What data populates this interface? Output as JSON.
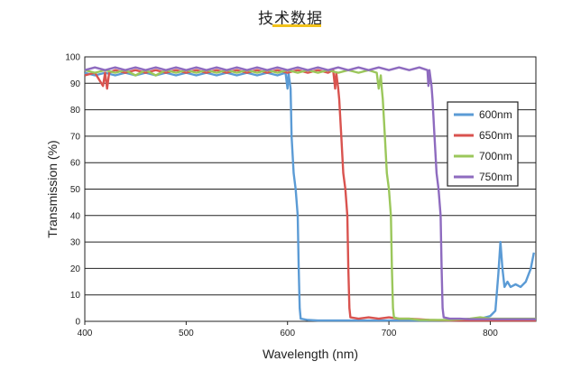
{
  "header": {
    "title": "技术数据"
  },
  "chart_data": {
    "type": "line",
    "title": "",
    "xlabel": "Wavelength (nm)",
    "ylabel": "Transmission (%)",
    "xlim": [
      400,
      845
    ],
    "ylim": [
      0,
      100
    ],
    "x_ticks": [
      400,
      500,
      600,
      700,
      800
    ],
    "y_ticks": [
      0,
      10,
      20,
      30,
      40,
      50,
      60,
      70,
      80,
      90,
      100
    ],
    "grid": "horizontal",
    "legend_position": "right",
    "colors": {
      "600nm": "#5b9bd5",
      "650nm": "#d9534f",
      "700nm": "#9bc75b",
      "750nm": "#8e6bbf"
    },
    "series": [
      {
        "name": "600nm",
        "color": "#5b9bd5",
        "points": [
          [
            400,
            94
          ],
          [
            410,
            93
          ],
          [
            420,
            94
          ],
          [
            430,
            93
          ],
          [
            440,
            94
          ],
          [
            450,
            93
          ],
          [
            460,
            94
          ],
          [
            470,
            93
          ],
          [
            480,
            94
          ],
          [
            490,
            93
          ],
          [
            500,
            94
          ],
          [
            510,
            93
          ],
          [
            520,
            94
          ],
          [
            530,
            93
          ],
          [
            540,
            94
          ],
          [
            550,
            93
          ],
          [
            560,
            94
          ],
          [
            570,
            93
          ],
          [
            580,
            94
          ],
          [
            590,
            93
          ],
          [
            598,
            94
          ],
          [
            600,
            88
          ],
          [
            601,
            94
          ],
          [
            603,
            88
          ],
          [
            604,
            70
          ],
          [
            606,
            56
          ],
          [
            608,
            50
          ],
          [
            610,
            40
          ],
          [
            611,
            20
          ],
          [
            612,
            5
          ],
          [
            613,
            1
          ],
          [
            620,
            0.5
          ],
          [
            630,
            0.3
          ],
          [
            640,
            0.3
          ],
          [
            660,
            0.3
          ],
          [
            680,
            0.3
          ],
          [
            700,
            0.3
          ],
          [
            720,
            0.3
          ],
          [
            740,
            0.3
          ],
          [
            760,
            0.3
          ],
          [
            780,
            0.5
          ],
          [
            790,
            1
          ],
          [
            800,
            2
          ],
          [
            805,
            4
          ],
          [
            808,
            18
          ],
          [
            810,
            30
          ],
          [
            812,
            20
          ],
          [
            814,
            13
          ],
          [
            817,
            15
          ],
          [
            820,
            13
          ],
          [
            825,
            14
          ],
          [
            830,
            13
          ],
          [
            835,
            15
          ],
          [
            840,
            20
          ],
          [
            843,
            26
          ]
        ]
      },
      {
        "name": "650nm",
        "color": "#d9534f",
        "points": [
          [
            400,
            93
          ],
          [
            410,
            94
          ],
          [
            418,
            89
          ],
          [
            420,
            94
          ],
          [
            422,
            88
          ],
          [
            424,
            94
          ],
          [
            430,
            95
          ],
          [
            440,
            94
          ],
          [
            450,
            95
          ],
          [
            460,
            94
          ],
          [
            470,
            95
          ],
          [
            480,
            94
          ],
          [
            490,
            95
          ],
          [
            500,
            94
          ],
          [
            510,
            95
          ],
          [
            520,
            94
          ],
          [
            530,
            95
          ],
          [
            540,
            94
          ],
          [
            550,
            95
          ],
          [
            560,
            94
          ],
          [
            570,
            95
          ],
          [
            580,
            94
          ],
          [
            590,
            95
          ],
          [
            600,
            94
          ],
          [
            610,
            95
          ],
          [
            620,
            94
          ],
          [
            630,
            95
          ],
          [
            640,
            94
          ],
          [
            645,
            95
          ],
          [
            647,
            88
          ],
          [
            648,
            94
          ],
          [
            650,
            88
          ],
          [
            651,
            84
          ],
          [
            653,
            70
          ],
          [
            655,
            56
          ],
          [
            657,
            50
          ],
          [
            659,
            40
          ],
          [
            660,
            20
          ],
          [
            661,
            5
          ],
          [
            662,
            1.5
          ],
          [
            670,
            1
          ],
          [
            680,
            1.5
          ],
          [
            690,
            1
          ],
          [
            700,
            1.5
          ],
          [
            710,
            1
          ],
          [
            720,
            1
          ],
          [
            740,
            0.5
          ],
          [
            760,
            0.3
          ],
          [
            780,
            0.3
          ],
          [
            800,
            0.3
          ],
          [
            820,
            0.3
          ],
          [
            845,
            0.3
          ]
        ]
      },
      {
        "name": "700nm",
        "color": "#9bc75b",
        "points": [
          [
            400,
            95
          ],
          [
            410,
            94
          ],
          [
            420,
            95
          ],
          [
            430,
            94
          ],
          [
            440,
            95
          ],
          [
            450,
            93
          ],
          [
            460,
            95
          ],
          [
            470,
            93
          ],
          [
            480,
            95
          ],
          [
            490,
            94
          ],
          [
            500,
            95
          ],
          [
            510,
            94
          ],
          [
            520,
            95
          ],
          [
            530,
            94
          ],
          [
            540,
            95
          ],
          [
            550,
            94
          ],
          [
            560,
            95
          ],
          [
            570,
            94
          ],
          [
            580,
            95
          ],
          [
            590,
            94
          ],
          [
            600,
            95
          ],
          [
            610,
            94
          ],
          [
            620,
            95
          ],
          [
            630,
            94
          ],
          [
            640,
            95
          ],
          [
            650,
            94
          ],
          [
            660,
            95
          ],
          [
            670,
            94
          ],
          [
            680,
            95
          ],
          [
            688,
            94
          ],
          [
            690,
            88
          ],
          [
            692,
            93
          ],
          [
            693,
            88
          ],
          [
            694,
            84
          ],
          [
            696,
            70
          ],
          [
            698,
            56
          ],
          [
            700,
            50
          ],
          [
            702,
            40
          ],
          [
            703,
            20
          ],
          [
            704,
            5
          ],
          [
            705,
            1.5
          ],
          [
            710,
            1
          ],
          [
            720,
            1
          ],
          [
            730,
            0.5
          ],
          [
            740,
            0.5
          ],
          [
            760,
            0.5
          ],
          [
            780,
            1
          ],
          [
            790,
            1.5
          ],
          [
            800,
            1
          ],
          [
            820,
            1
          ],
          [
            845,
            1
          ]
        ]
      },
      {
        "name": "750nm",
        "color": "#8e6bbf",
        "points": [
          [
            400,
            95
          ],
          [
            410,
            96
          ],
          [
            420,
            95
          ],
          [
            430,
            96
          ],
          [
            440,
            95
          ],
          [
            450,
            96
          ],
          [
            460,
            95
          ],
          [
            470,
            96
          ],
          [
            480,
            95
          ],
          [
            490,
            96
          ],
          [
            500,
            95
          ],
          [
            510,
            96
          ],
          [
            520,
            95
          ],
          [
            530,
            96
          ],
          [
            540,
            95
          ],
          [
            550,
            96
          ],
          [
            560,
            95
          ],
          [
            570,
            96
          ],
          [
            580,
            95
          ],
          [
            590,
            96
          ],
          [
            600,
            95
          ],
          [
            610,
            96
          ],
          [
            620,
            95
          ],
          [
            630,
            96
          ],
          [
            640,
            95
          ],
          [
            650,
            96
          ],
          [
            660,
            95
          ],
          [
            670,
            96
          ],
          [
            680,
            95
          ],
          [
            690,
            96
          ],
          [
            700,
            95
          ],
          [
            710,
            96
          ],
          [
            720,
            95
          ],
          [
            730,
            96
          ],
          [
            738,
            95
          ],
          [
            739,
            89
          ],
          [
            740,
            95
          ],
          [
            742,
            89
          ],
          [
            743,
            84
          ],
          [
            745,
            70
          ],
          [
            747,
            56
          ],
          [
            749,
            50
          ],
          [
            751,
            40
          ],
          [
            752,
            20
          ],
          [
            753,
            5
          ],
          [
            754,
            1.5
          ],
          [
            760,
            1
          ],
          [
            770,
            1
          ],
          [
            780,
            0.8
          ],
          [
            790,
            0.8
          ],
          [
            800,
            0.8
          ],
          [
            820,
            0.8
          ],
          [
            845,
            0.8
          ]
        ]
      }
    ]
  }
}
